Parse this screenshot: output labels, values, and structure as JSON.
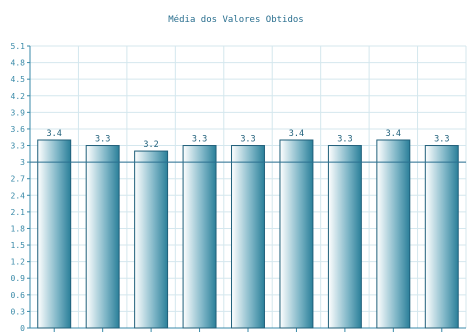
{
  "chart_data": {
    "type": "bar",
    "title": "Média dos Valores Obtidos",
    "xlabel": "",
    "ylabel": "",
    "ylim": [
      0,
      5.1
    ],
    "yticks": [
      0,
      0.3,
      0.6,
      0.9,
      1.2,
      1.5,
      1.8,
      2.1,
      2.4,
      2.7,
      3,
      3.3,
      3.6,
      3.9,
      4.2,
      4.5,
      4.8,
      5.1
    ],
    "ytick_labels": [
      "0",
      "0.3",
      "0.6",
      "0.9",
      "1.2",
      "1.5",
      "1.8",
      "2.1",
      "2.4",
      "2.7",
      "3",
      "3.3",
      "3.6",
      "3.9",
      "4.2",
      "4.5",
      "4.8",
      "5.1"
    ],
    "categories": [
      "",
      "",
      "",
      "",
      "",
      "",
      "",
      "",
      ""
    ],
    "values": [
      3.4,
      3.3,
      3.2,
      3.3,
      3.3,
      3.4,
      3.3,
      3.4,
      3.3
    ],
    "value_labels": [
      "3.4",
      "3.3",
      "3.2",
      "3.3",
      "3.3",
      "3.4",
      "3.3",
      "3.4",
      "3.3"
    ],
    "reference_line": 3,
    "grid": true,
    "legend": "none",
    "colors": {
      "bar_dark": "#2a7f99",
      "bar_light": "#ffffff",
      "bar_edge": "#1f5f7a",
      "axis": "#3a8aa8",
      "grid": "#d4e7ee",
      "reference": "#2a6f8f"
    }
  }
}
